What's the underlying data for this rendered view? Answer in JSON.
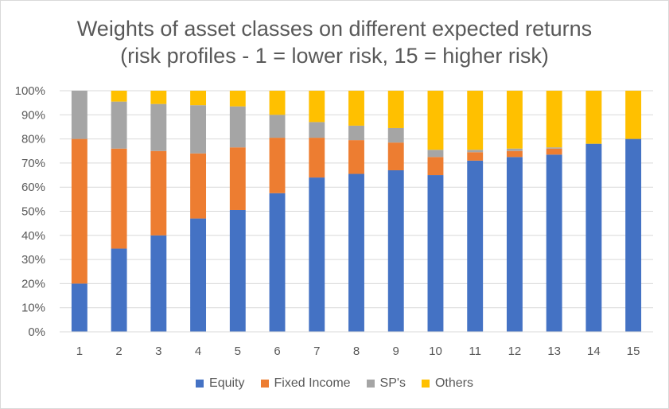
{
  "chart_data": {
    "type": "bar",
    "stacked": true,
    "title": [
      "Weights of asset classes on different expected returns",
      "(risk profiles - 1 = lower risk, 15 = higher risk)"
    ],
    "xlabel": "",
    "ylabel": "",
    "ylim": [
      0,
      100
    ],
    "yticks": [
      "0%",
      "10%",
      "20%",
      "30%",
      "40%",
      "50%",
      "60%",
      "70%",
      "80%",
      "90%",
      "100%"
    ],
    "grid": true,
    "legend_position": "bottom",
    "categories": [
      "1",
      "2",
      "3",
      "4",
      "5",
      "6",
      "7",
      "8",
      "9",
      "10",
      "11",
      "12",
      "13",
      "14",
      "15"
    ],
    "series": [
      {
        "name": "Equity",
        "color": "#4472c4",
        "values": [
          20,
          34.5,
          40,
          47,
          50.5,
          57.5,
          64,
          65.5,
          67,
          65,
          71,
          72.5,
          73.5,
          78,
          80
        ]
      },
      {
        "name": "Fixed Income",
        "color": "#ed7d31",
        "values": [
          60,
          41.5,
          35,
          27,
          26,
          23,
          16.5,
          14,
          11.5,
          7.5,
          3.5,
          2.5,
          2.5,
          0,
          0
        ]
      },
      {
        "name": "SP's",
        "color": "#a5a5a5",
        "values": [
          20,
          19.5,
          19.5,
          20,
          17,
          9.5,
          6.5,
          6,
          6,
          3,
          1,
          1,
          0.5,
          0,
          0
        ]
      },
      {
        "name": "Others",
        "color": "#ffc000",
        "values": [
          0,
          4.5,
          5.5,
          6,
          6.5,
          10,
          13,
          14.5,
          15.5,
          24.5,
          24.5,
          24,
          23.5,
          22,
          20
        ]
      }
    ]
  }
}
